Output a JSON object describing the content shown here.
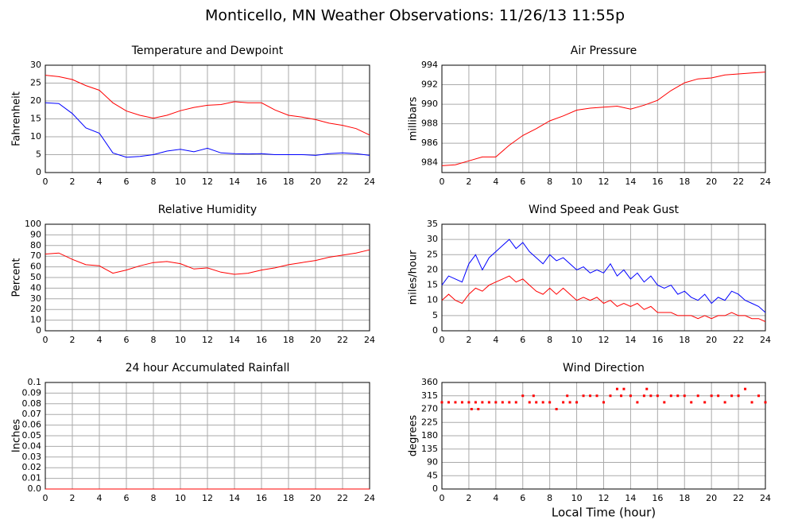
{
  "title": "Monticello, MN Weather Observations: 11/26/13 11:55p",
  "chart_data": [
    {
      "type": "line",
      "title": "Temperature and Dewpoint",
      "y_label": "Fahrenheit",
      "x": [
        0,
        1,
        2,
        3,
        4,
        5,
        6,
        7,
        8,
        9,
        10,
        11,
        12,
        13,
        14,
        15,
        16,
        17,
        18,
        19,
        20,
        21,
        22,
        23,
        24
      ],
      "series": [
        {
          "color": "#ff0000",
          "values": [
            27.2,
            26.8,
            26,
            24.3,
            23,
            19.5,
            17.2,
            16,
            15.2,
            16,
            17.3,
            18.2,
            18.8,
            19,
            19.8,
            19.5,
            19.5,
            17.5,
            16,
            15.5,
            14.8,
            13.8,
            13.2,
            12.3,
            10.5
          ]
        },
        {
          "color": "#0000ff",
          "values": [
            19.5,
            19.3,
            16.5,
            12.5,
            11,
            5.5,
            4.3,
            4.5,
            5,
            6,
            6.5,
            5.8,
            6.8,
            5.5,
            5.3,
            5.2,
            5.3,
            5,
            5,
            5,
            4.8,
            5.3,
            5.5,
            5.3,
            4.8
          ]
        }
      ],
      "xlim": [
        0,
        24
      ],
      "xticks": [
        0,
        2,
        4,
        6,
        8,
        10,
        12,
        14,
        16,
        18,
        20,
        22,
        24
      ],
      "ylim": [
        0,
        30
      ],
      "yticks": [
        0,
        5,
        10,
        15,
        20,
        25,
        30
      ],
      "grid": true
    },
    {
      "type": "line",
      "title": "Air Pressure",
      "y_label": "millibars",
      "x": [
        0,
        1,
        2,
        3,
        4,
        5,
        6,
        7,
        8,
        9,
        10,
        11,
        12,
        13,
        14,
        15,
        16,
        17,
        18,
        19,
        20,
        21,
        22,
        23,
        24
      ],
      "series": [
        {
          "color": "#ff0000",
          "values": [
            983.7,
            983.8,
            984.2,
            984.6,
            984.6,
            985.8,
            986.8,
            987.5,
            988.3,
            988.8,
            989.4,
            989.6,
            989.7,
            989.8,
            989.5,
            989.9,
            990.4,
            991.4,
            992.2,
            992.6,
            992.7,
            993,
            993.1,
            993.2,
            993.3
          ]
        }
      ],
      "xlim": [
        0,
        24
      ],
      "xticks": [
        0,
        2,
        4,
        6,
        8,
        10,
        12,
        14,
        16,
        18,
        20,
        22,
        24
      ],
      "ylim": [
        983,
        994
      ],
      "yticks": [
        984,
        986,
        988,
        990,
        992,
        994
      ],
      "grid": true
    },
    {
      "type": "line",
      "title": "Relative Humidity",
      "y_label": "Percent",
      "x": [
        0,
        1,
        2,
        3,
        4,
        5,
        6,
        7,
        8,
        9,
        10,
        11,
        12,
        13,
        14,
        15,
        16,
        17,
        18,
        19,
        20,
        21,
        22,
        23,
        24
      ],
      "series": [
        {
          "color": "#ff0000",
          "values": [
            72,
            73,
            67,
            62,
            61,
            54,
            57,
            61,
            64,
            65,
            63,
            58,
            59,
            55,
            53,
            54,
            57,
            59,
            62,
            64,
            66,
            69,
            71,
            73,
            76
          ]
        }
      ],
      "xlim": [
        0,
        24
      ],
      "xticks": [
        0,
        2,
        4,
        6,
        8,
        10,
        12,
        14,
        16,
        18,
        20,
        22,
        24
      ],
      "ylim": [
        0,
        100
      ],
      "yticks": [
        0,
        10,
        20,
        30,
        40,
        50,
        60,
        70,
        80,
        90,
        100
      ],
      "grid": true
    },
    {
      "type": "line",
      "title": "Wind Speed and Peak Gust",
      "y_label": "miles/hour",
      "x": [
        0,
        0.5,
        1,
        1.5,
        2,
        2.5,
        3,
        3.5,
        4,
        4.5,
        5,
        5.5,
        6,
        6.5,
        7,
        7.5,
        8,
        8.5,
        9,
        9.5,
        10,
        10.5,
        11,
        11.5,
        12,
        12.5,
        13,
        13.5,
        14,
        14.5,
        15,
        15.5,
        16,
        16.5,
        17,
        17.5,
        18,
        18.5,
        19,
        19.5,
        20,
        20.5,
        21,
        21.5,
        22,
        22.5,
        23,
        23.5,
        24
      ],
      "series": [
        {
          "color": "#0000ff",
          "values": [
            15,
            18,
            17,
            16,
            22,
            25,
            20,
            24,
            26,
            28,
            30,
            27,
            29,
            26,
            24,
            22,
            25,
            23,
            24,
            22,
            20,
            21,
            19,
            20,
            19,
            22,
            18,
            20,
            17,
            19,
            16,
            18,
            15,
            14,
            15,
            12,
            13,
            11,
            10,
            12,
            9,
            11,
            10,
            13,
            12,
            10,
            9,
            8,
            6
          ]
        },
        {
          "color": "#ff0000",
          "values": [
            10,
            12,
            10,
            9,
            12,
            14,
            13,
            15,
            16,
            17,
            18,
            16,
            17,
            15,
            13,
            12,
            14,
            12,
            14,
            12,
            10,
            11,
            10,
            11,
            9,
            10,
            8,
            9,
            8,
            9,
            7,
            8,
            6,
            6,
            6,
            5,
            5,
            5,
            4,
            5,
            4,
            5,
            5,
            6,
            5,
            5,
            4,
            4,
            3
          ]
        }
      ],
      "xlim": [
        0,
        24
      ],
      "xticks": [
        0,
        2,
        4,
        6,
        8,
        10,
        12,
        14,
        16,
        18,
        20,
        22,
        24
      ],
      "ylim": [
        0,
        35
      ],
      "yticks": [
        0,
        5,
        10,
        15,
        20,
        25,
        30,
        35
      ],
      "grid": true
    },
    {
      "type": "line",
      "title": "24 hour Accumulated Rainfall",
      "y_label": "Inches",
      "x": [
        0,
        1,
        2,
        3,
        4,
        5,
        6,
        7,
        8,
        9,
        10,
        11,
        12,
        13,
        14,
        15,
        16,
        17,
        18,
        19,
        20,
        21,
        22,
        23,
        24
      ],
      "series": [
        {
          "color": "#ff0000",
          "values": [
            0,
            0,
            0,
            0,
            0,
            0,
            0,
            0,
            0,
            0,
            0,
            0,
            0,
            0,
            0,
            0,
            0,
            0,
            0,
            0,
            0,
            0,
            0,
            0,
            0
          ]
        }
      ],
      "xlim": [
        0,
        24
      ],
      "xticks": [
        0,
        2,
        4,
        6,
        8,
        10,
        12,
        14,
        16,
        18,
        20,
        22,
        24
      ],
      "ylim": [
        0,
        0.1
      ],
      "yticks": [
        {
          "value": 0,
          "label": "0.0"
        },
        0.01,
        0.02,
        0.03,
        0.04,
        0.05,
        0.06,
        0.07,
        0.08,
        0.09,
        0.1
      ],
      "grid": true
    },
    {
      "type": "scatter",
      "title": "Wind Direction",
      "y_label": "degrees",
      "x_label": "Local Time (hour)",
      "x": [
        0,
        0.5,
        1,
        1.5,
        2,
        2.2,
        2.5,
        2.7,
        3,
        3.5,
        4,
        4.5,
        5,
        5.5,
        6,
        6.5,
        6.8,
        7,
        7.5,
        8,
        8.5,
        9,
        9.3,
        9.5,
        10,
        10.5,
        11,
        11.5,
        12,
        12.5,
        13,
        13.3,
        13.5,
        14,
        14.5,
        15,
        15.2,
        15.5,
        16,
        16.5,
        17,
        17.5,
        18,
        18.5,
        19,
        19.5,
        20,
        20.5,
        21,
        21.5,
        22,
        22.5,
        23,
        23.5,
        24
      ],
      "series": [
        {
          "color": "#ff0000",
          "values": [
            293,
            293,
            293,
            293,
            293,
            270,
            293,
            270,
            293,
            293,
            293,
            293,
            293,
            293,
            315,
            293,
            315,
            293,
            293,
            293,
            270,
            293,
            315,
            293,
            293,
            315,
            315,
            315,
            293,
            315,
            338,
            315,
            338,
            315,
            293,
            315,
            338,
            315,
            315,
            293,
            315,
            315,
            315,
            293,
            315,
            293,
            315,
            315,
            293,
            315,
            315,
            338,
            293,
            315,
            293
          ]
        }
      ],
      "xlim": [
        0,
        24
      ],
      "xticks": [
        0,
        2,
        4,
        6,
        8,
        10,
        12,
        14,
        16,
        18,
        20,
        22,
        24
      ],
      "ylim": [
        0,
        360
      ],
      "yticks": [
        0,
        45,
        90,
        135,
        180,
        225,
        270,
        315,
        360
      ],
      "grid": true
    }
  ]
}
